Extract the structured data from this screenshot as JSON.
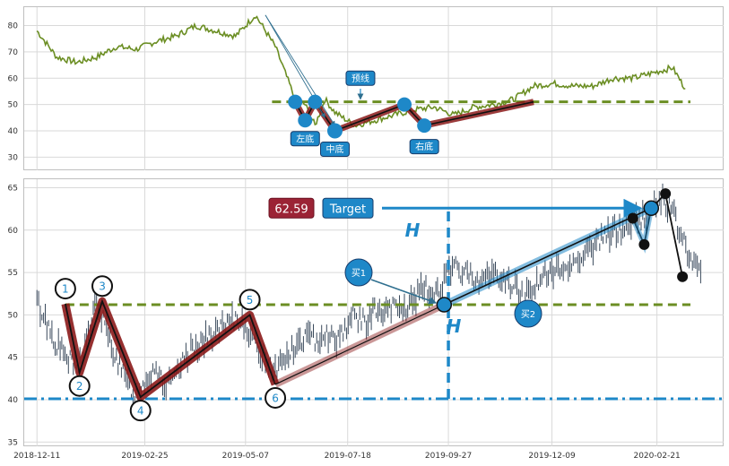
{
  "chart_data": [
    {
      "type": "line",
      "title": "",
      "xlabel": "",
      "ylabel": "",
      "ylim": [
        25,
        87
      ],
      "yticks": [
        30,
        40,
        50,
        60,
        70,
        80
      ],
      "grid": true,
      "series": [
        {
          "color": "#6b8e23",
          "x": [
            "2018-12-11",
            "2018-12-25",
            "2019-01-08",
            "2019-01-22",
            "2019-02-05",
            "2019-02-19",
            "2019-03-05",
            "2019-03-19",
            "2019-04-02",
            "2019-04-16",
            "2019-04-30",
            "2019-05-14",
            "2019-05-28",
            "2019-06-11",
            "2019-06-18",
            "2019-06-25",
            "2019-07-02",
            "2019-07-09",
            "2019-07-23",
            "2019-08-06",
            "2019-08-20",
            "2019-09-03",
            "2019-09-17",
            "2019-10-01",
            "2019-10-15",
            "2019-10-29",
            "2019-11-12",
            "2019-11-26",
            "2019-12-10",
            "2019-12-24",
            "2020-01-07",
            "2020-01-21",
            "2020-02-04",
            "2020-02-18",
            "2020-03-03",
            "2020-03-12"
          ],
          "values": [
            78,
            68,
            66,
            68,
            72,
            71,
            74,
            76,
            80,
            78,
            76,
            84,
            72,
            52,
            50,
            42,
            52,
            47,
            42,
            44,
            46,
            48,
            49,
            46,
            49,
            50,
            52,
            57,
            58,
            57,
            57,
            60,
            60,
            62,
            64,
            56
          ]
        }
      ],
      "reference_lines": [
        {
          "y": 51,
          "color": "#6b8e23",
          "style": "dashed"
        }
      ],
      "pattern_points": [
        {
          "x": "2019-06-11",
          "y": 51
        },
        {
          "x": "2019-06-18",
          "y": 44
        },
        {
          "x": "2019-06-25",
          "y": 51
        },
        {
          "x": "2019-07-09",
          "y": 40
        },
        {
          "x": "2019-08-27",
          "y": 50
        },
        {
          "x": "2019-09-10",
          "y": 42
        },
        {
          "x": "2019-11-26",
          "y": 51
        }
      ],
      "arrows": [
        {
          "from": {
            "x": "2019-05-21",
            "y": 84
          },
          "to": {
            "x": "2019-07-09",
            "y": 42
          }
        },
        {
          "from": {
            "x": "2019-05-21",
            "y": 84
          },
          "to": {
            "x": "2019-07-02",
            "y": 45
          }
        },
        {
          "from": {
            "x": "2019-07-27",
            "y": 56
          },
          "to": {
            "x": "2019-07-27",
            "y": 52
          }
        }
      ],
      "annotations": [
        {
          "text": "预线",
          "x": "2019-07-27",
          "y": 60
        },
        {
          "text": "左底",
          "x": "2019-06-18",
          "y": 37
        },
        {
          "text": "中底",
          "x": "2019-07-09",
          "y": 33
        },
        {
          "text": "右底",
          "x": "2019-09-10",
          "y": 34
        }
      ]
    },
    {
      "type": "bar",
      "title": "",
      "xlabel": "",
      "ylabel": "",
      "ylim": [
        34.5,
        66
      ],
      "yticks": [
        35,
        40,
        45,
        50,
        55,
        60,
        65
      ],
      "xlim": [
        "2018-12-02",
        "2020-04-08"
      ],
      "xticks": [
        "2018-12-11",
        "2019-02-25",
        "2019-05-07",
        "2019-07-18",
        "2019-09-27",
        "2019-12-09",
        "2020-02-21"
      ],
      "grid": true,
      "price_series": {
        "color": "#3a4a5c",
        "x": [
          "2018-12-11",
          "2018-12-18",
          "2018-12-25",
          "2019-01-01",
          "2019-01-08",
          "2019-01-15",
          "2019-01-22",
          "2019-01-29",
          "2019-02-05",
          "2019-02-12",
          "2019-02-19",
          "2019-02-26",
          "2019-03-05",
          "2019-03-12",
          "2019-03-19",
          "2019-03-26",
          "2019-04-02",
          "2019-04-09",
          "2019-04-16",
          "2019-04-23",
          "2019-04-30",
          "2019-05-07",
          "2019-05-14",
          "2019-05-21",
          "2019-05-28",
          "2019-06-04",
          "2019-06-11",
          "2019-06-18",
          "2019-06-25",
          "2019-07-02",
          "2019-07-09",
          "2019-07-16",
          "2019-07-23",
          "2019-07-30",
          "2019-08-06",
          "2019-08-13",
          "2019-08-20",
          "2019-08-27",
          "2019-09-03",
          "2019-09-10",
          "2019-09-17",
          "2019-09-24",
          "2019-10-01",
          "2019-10-08",
          "2019-10-15",
          "2019-10-22",
          "2019-10-29",
          "2019-11-05",
          "2019-11-12",
          "2019-11-19",
          "2019-11-26",
          "2019-12-03",
          "2019-12-10",
          "2019-12-17",
          "2019-12-24",
          "2019-12-31",
          "2020-01-07",
          "2020-01-14",
          "2020-01-21",
          "2020-01-28",
          "2020-02-04",
          "2020-02-11",
          "2020-02-18",
          "2020-02-25",
          "2020-03-03",
          "2020-03-10",
          "2020-03-17",
          "2020-03-24"
        ],
        "values": [
          51.5,
          49.0,
          46.5,
          45.0,
          43.5,
          47.0,
          51.5,
          48.0,
          45.0,
          42.0,
          40.5,
          42.5,
          44.0,
          41.5,
          42.5,
          45.0,
          46.5,
          47.0,
          48.0,
          48.5,
          49.5,
          49.0,
          46.5,
          45.0,
          43.5,
          45.0,
          46.0,
          47.5,
          47.0,
          48.0,
          47.0,
          48.5,
          50.0,
          49.0,
          50.5,
          50.0,
          51.0,
          50.5,
          52.0,
          53.0,
          52.5,
          54.0,
          55.5,
          55.0,
          54.5,
          54.0,
          55.0,
          54.0,
          53.5,
          52.0,
          53.5,
          54.5,
          55.0,
          55.5,
          56.0,
          57.5,
          58.0,
          59.0,
          60.0,
          60.0,
          61.0,
          61.5,
          62.5,
          64.0,
          62.0,
          59.0,
          56.0,
          54.5
        ]
      },
      "reference_lines": [
        {
          "y": 51.2,
          "color": "#6b8e23",
          "style": "dashed"
        },
        {
          "y": 40.1,
          "color": "#1e88c8",
          "style": "dashdot"
        },
        {
          "x": "2019-09-27",
          "color": "#1e88c8",
          "style": "dashed",
          "y_range": [
            40.1,
            62.59
          ]
        }
      ],
      "pattern_points": [
        {
          "label": "1",
          "x": "2018-12-31",
          "y": 51.3
        },
        {
          "label": "2",
          "x": "2019-01-10",
          "y": 43.2
        },
        {
          "label": "3",
          "x": "2019-01-26",
          "y": 51.6
        },
        {
          "label": "4",
          "x": "2019-02-22",
          "y": 40.3
        },
        {
          "label": "5",
          "x": "2019-05-10",
          "y": 50.0
        },
        {
          "label": "6",
          "x": "2019-05-28",
          "y": 41.8
        }
      ],
      "breakout_point": {
        "x": "2019-09-24",
        "y": 51.2
      },
      "target_point": {
        "x": "2020-02-17",
        "y": 62.59
      },
      "black_points": [
        {
          "x": "2020-02-04",
          "y": 61.4
        },
        {
          "x": "2020-02-12",
          "y": 58.3
        },
        {
          "x": "2020-02-27",
          "y": 64.3
        },
        {
          "x": "2020-03-10",
          "y": 54.5
        }
      ],
      "target_value_label": "62.59",
      "target_label": "Target",
      "h_label": "H",
      "buy_labels": [
        "买1",
        "买2"
      ],
      "colors": {
        "pattern": "#8b1a1a",
        "accent": "#1e88c8",
        "neckline": "#6b8e23",
        "badge_red": "#9b2335"
      }
    }
  ]
}
